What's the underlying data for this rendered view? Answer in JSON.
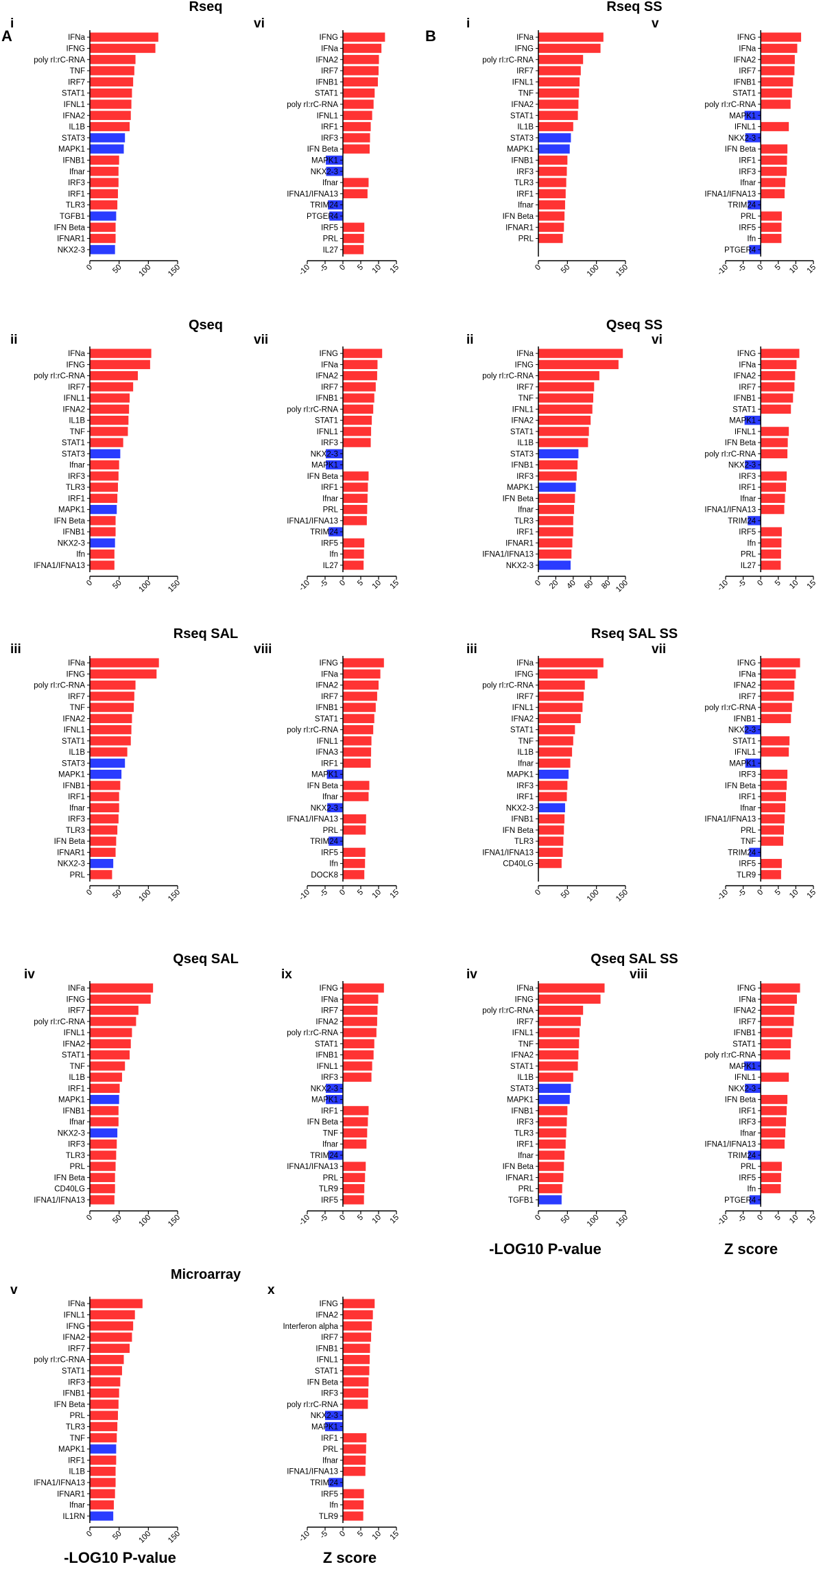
{
  "colors": {
    "pos": "#ff3333",
    "neg": "#2a3cff",
    "axis": "#000000"
  },
  "section_labels": [
    "A",
    "B"
  ],
  "section_titles": [
    "Rseq",
    "Qseq",
    "Rseq SAL",
    "Qseq SAL",
    "Microarray",
    "Rseq SS",
    "Qseq SS",
    "Rseq SAL SS",
    "Qseq SAL SS"
  ],
  "axis_titles": {
    "pvalue": "-LOG10 P-value",
    "zscore": "Z score"
  },
  "chart_data": [
    {
      "id": "A-i",
      "type": "bar",
      "orientation": "horizontal",
      "panel": "i",
      "xlim": [
        0,
        150
      ],
      "ticks": [
        0,
        50,
        100,
        150
      ],
      "categories": [
        "IFNa",
        "IFNG",
        "poly rI:rC-RNA",
        "TNF",
        "IRF7",
        "STAT1",
        "IFNL1",
        "IFNA2",
        "IL1B",
        "STAT3",
        "MAPK1",
        "IFNB1",
        "Ifnar",
        "IRF3",
        "IRF1",
        "TLR3",
        "TGFB1",
        "IFN Beta",
        "IFNAR1",
        "NKX2-3"
      ],
      "values": [
        117,
        112,
        78,
        76,
        74,
        72,
        71,
        70,
        68,
        60,
        58,
        50,
        49,
        49,
        48,
        47,
        45,
        44,
        44,
        43
      ],
      "signs": [
        1,
        1,
        1,
        1,
        1,
        1,
        1,
        1,
        1,
        -1,
        -1,
        1,
        1,
        1,
        1,
        1,
        -1,
        1,
        1,
        -1
      ]
    },
    {
      "id": "A-vi",
      "type": "bar",
      "orientation": "horizontal",
      "panel": "vi",
      "xlim": [
        -10,
        15
      ],
      "ticks": [
        -10,
        -5,
        0,
        5,
        10,
        15
      ],
      "categories": [
        "IFNG",
        "IFNa",
        "IFNA2",
        "IRF7",
        "IFNB1",
        "STAT1",
        "poly rI:rC-RNA",
        "IFNL1",
        "IRF1",
        "IRF3",
        "IFN Beta",
        "MAPK1",
        "NKX2-3",
        "Ifnar",
        "IFNA1/IFNA13",
        "TRIM24",
        "PTGER4",
        "IRF5",
        "PRL",
        "IL27"
      ],
      "values": [
        11.8,
        10.8,
        10.1,
        10.0,
        9.8,
        8.9,
        8.6,
        8.2,
        7.8,
        7.6,
        7.5,
        -4.8,
        -4.7,
        7.2,
        6.9,
        -4.2,
        -3.8,
        6.0,
        5.9,
        5.8
      ]
    },
    {
      "id": "A-ii",
      "type": "bar",
      "orientation": "horizontal",
      "panel": "ii",
      "xlim": [
        0,
        150
      ],
      "ticks": [
        0,
        50,
        100,
        150
      ],
      "categories": [
        "IFNa",
        "IFNG",
        "poly rI:rC-RNA",
        "IRF7",
        "IFNL1",
        "IFNA2",
        "IL1B",
        "TNF",
        "STAT1",
        "STAT3",
        "Ifnar",
        "IRF3",
        "TLR3",
        "IRF1",
        "MAPK1",
        "IFN Beta",
        "IFNB1",
        "NKX2-3",
        "Ifn",
        "IFNA1/IFNA13"
      ],
      "values": [
        105,
        103,
        82,
        74,
        68,
        67,
        66,
        65,
        57,
        52,
        50,
        49,
        48,
        47,
        46,
        44,
        44,
        43,
        42,
        42
      ],
      "signs": [
        1,
        1,
        1,
        1,
        1,
        1,
        1,
        1,
        1,
        -1,
        1,
        1,
        1,
        1,
        -1,
        1,
        1,
        -1,
        1,
        1
      ]
    },
    {
      "id": "A-vii",
      "type": "bar",
      "orientation": "horizontal",
      "panel": "vii",
      "xlim": [
        -10,
        15
      ],
      "ticks": [
        -10,
        -5,
        0,
        5,
        10,
        15
      ],
      "categories": [
        "IFNG",
        "IFNa",
        "IFNA2",
        "IRF7",
        "IFNB1",
        "poly rI:rC-RNA",
        "STAT1",
        "IFNL1",
        "IRF3",
        "NKX2-3",
        "MAPK1",
        "IFN Beta",
        "IRF1",
        "Ifnar",
        "PRL",
        "IFNA1/IFNA13",
        "TRIM24",
        "IRF5",
        "Ifn",
        "IL27"
      ],
      "values": [
        11.0,
        9.7,
        9.6,
        9.2,
        8.8,
        8.5,
        8.1,
        7.9,
        7.8,
        -4.8,
        -4.8,
        7.2,
        7.0,
        6.9,
        6.8,
        6.7,
        -4.0,
        6.0,
        5.9,
        5.8
      ]
    },
    {
      "id": "A-iii",
      "type": "bar",
      "orientation": "horizontal",
      "panel": "iii",
      "xlim": [
        0,
        150
      ],
      "ticks": [
        0,
        50,
        100,
        150
      ],
      "categories": [
        "IFNa",
        "IFNG",
        "poly rI:rC-RNA",
        "IRF7",
        "TNF",
        "IFNA2",
        "IFNL1",
        "STAT1",
        "IL1B",
        "STAT3",
        "MAPK1",
        "IFNB1",
        "IRF1",
        "Ifnar",
        "IRF3",
        "TLR3",
        "IFN Beta",
        "IFNAR1",
        "NKX2-3",
        "PRL"
      ],
      "values": [
        118,
        114,
        78,
        76,
        75,
        72,
        71,
        70,
        64,
        60,
        54,
        52,
        50,
        50,
        49,
        47,
        45,
        44,
        40,
        38
      ],
      "signs": [
        1,
        1,
        1,
        1,
        1,
        1,
        1,
        1,
        1,
        -1,
        -1,
        1,
        1,
        1,
        1,
        1,
        1,
        1,
        -1,
        1
      ]
    },
    {
      "id": "A-viii",
      "type": "bar",
      "orientation": "horizontal",
      "panel": "viii",
      "xlim": [
        -10,
        15
      ],
      "ticks": [
        -10,
        -5,
        0,
        5,
        10,
        15
      ],
      "categories": [
        "IFNG",
        "IFNa",
        "IFNA2",
        "IRF7",
        "IFNB1",
        "STAT1",
        "poly rI:rC-RNA",
        "IFNL1",
        "IFNA3",
        "IRF1",
        "MAPK1",
        "IFN Beta",
        "Ifnar",
        "NKX2-3",
        "IFNA1/IFNA13",
        "PRL",
        "TRIM24",
        "IRF5",
        "Ifn",
        "DOCK8"
      ],
      "values": [
        11.5,
        10.5,
        10.0,
        9.6,
        9.2,
        8.8,
        8.5,
        8.0,
        7.9,
        7.8,
        -4.5,
        7.4,
        7.2,
        -4.4,
        6.5,
        6.4,
        -4.0,
        6.3,
        6.2,
        6.0
      ]
    },
    {
      "id": "A-iv",
      "type": "bar",
      "orientation": "horizontal",
      "panel": "iv",
      "xlim": [
        0,
        150
      ],
      "ticks": [
        0,
        50,
        100,
        150
      ],
      "categories": [
        "INFa",
        "IFNG",
        "IRF7",
        "poly rI:rC-RNA",
        "IFNL1",
        "IFNA2",
        "STAT1",
        "TNF",
        "IL1B",
        "IRF1",
        "MAPK1",
        "IFNB1",
        "Ifnar",
        "NKX2-3",
        "IRF3",
        "TLR3",
        "PRL",
        "IFN Beta",
        "CD40LG",
        "IFNA1/IFNA13"
      ],
      "values": [
        108,
        104,
        83,
        79,
        72,
        70,
        68,
        60,
        55,
        51,
        50,
        49,
        49,
        47,
        46,
        45,
        44,
        43,
        43,
        42
      ],
      "signs": [
        1,
        1,
        1,
        1,
        1,
        1,
        1,
        1,
        1,
        1,
        -1,
        1,
        1,
        -1,
        1,
        1,
        1,
        1,
        1,
        1
      ]
    },
    {
      "id": "A-ix",
      "type": "bar",
      "orientation": "horizontal",
      "panel": "ix",
      "xlim": [
        -10,
        15
      ],
      "ticks": [
        -10,
        -5,
        0,
        5,
        10,
        15
      ],
      "categories": [
        "IFNG",
        "IFNa",
        "IRF7",
        "IFNA2",
        "poly rI:rC-RNA",
        "STAT1",
        "IFNB1",
        "IFNL1",
        "IRF3",
        "NKX2-3",
        "MAPK1",
        "IRF1",
        "IFN Beta",
        "TNF",
        "Ifnar",
        "TRIM24",
        "IFNA1/IFNA13",
        "PRL",
        "TLR9",
        "IRF5"
      ],
      "values": [
        11.5,
        9.9,
        9.7,
        9.6,
        9.4,
        8.8,
        8.6,
        8.2,
        8.0,
        -4.8,
        -4.8,
        7.2,
        7.0,
        6.8,
        6.6,
        -4.1,
        6.4,
        6.2,
        6.0,
        5.9
      ]
    },
    {
      "id": "A-v",
      "type": "bar",
      "orientation": "horizontal",
      "panel": "v",
      "xlim": [
        0,
        150
      ],
      "ticks": [
        0,
        50,
        100,
        150
      ],
      "categories": [
        "IFNa",
        "IFNL1",
        "IFNG",
        "IFNA2",
        "IRF7",
        "poly rI:rC-RNA",
        "STAT1",
        "IRF3",
        "IFNB1",
        "IFN Beta",
        "PRL",
        "TLR3",
        "TNF",
        "MAPK1",
        "IRF1",
        "IL1B",
        "IFNA1/IFNA13",
        "IFNAR1",
        "Ifnar",
        "IL1RN"
      ],
      "values": [
        90,
        77,
        74,
        72,
        68,
        58,
        55,
        52,
        50,
        49,
        48,
        47,
        46,
        45,
        45,
        44,
        44,
        43,
        41,
        40
      ],
      "signs": [
        1,
        1,
        1,
        1,
        1,
        1,
        1,
        1,
        1,
        1,
        1,
        1,
        1,
        -1,
        1,
        1,
        1,
        1,
        1,
        -1
      ]
    },
    {
      "id": "A-x",
      "type": "bar",
      "orientation": "horizontal",
      "panel": "x",
      "xlim": [
        -10,
        15
      ],
      "ticks": [
        -10,
        -5,
        0,
        5,
        10,
        15
      ],
      "categories": [
        "IFNG",
        "IFNA2",
        "Interferon alpha",
        "IRF7",
        "IFNB1",
        "IFNL1",
        "STAT1",
        "IFN Beta",
        "IRF3",
        "poly rI:rC-RNA",
        "NKX2-3",
        "MAPK1",
        "IRF1",
        "PRL",
        "Ifnar",
        "IFNA1/IFNA13",
        "TRIM24",
        "IRF5",
        "Ifn",
        "TLR9"
      ],
      "values": [
        8.9,
        8.4,
        8.1,
        7.9,
        7.6,
        7.5,
        7.4,
        7.2,
        7.1,
        7.0,
        -5.0,
        -5.0,
        6.6,
        6.5,
        6.4,
        6.3,
        -4.0,
        5.9,
        5.8,
        5.7
      ]
    },
    {
      "id": "B-i",
      "type": "bar",
      "orientation": "horizontal",
      "panel": "i",
      "xlim": [
        0,
        150
      ],
      "ticks": [
        0,
        50,
        100,
        150
      ],
      "categories": [
        "IFNa",
        "IFNG",
        "poly rI:rC-RNA",
        "IRF7",
        "IFNL1",
        "TNF",
        "IFNA2",
        "STAT1",
        "IL1B",
        "STAT3",
        "MAPK1",
        "IFNB1",
        "IRF3",
        "TLR3",
        "IRF1",
        "Ifnar",
        "IFN Beta",
        "IFNAR1",
        "PRL"
      ],
      "values": [
        112,
        107,
        77,
        73,
        71,
        70,
        69,
        68,
        60,
        56,
        54,
        50,
        49,
        48,
        47,
        46,
        45,
        44,
        42
      ],
      "signs": [
        1,
        1,
        1,
        1,
        1,
        1,
        1,
        1,
        1,
        -1,
        -1,
        1,
        1,
        1,
        1,
        1,
        1,
        1,
        1
      ]
    },
    {
      "id": "B-v",
      "type": "bar",
      "orientation": "horizontal",
      "panel": "v",
      "xlim": [
        -10,
        15
      ],
      "ticks": [
        -10,
        -5,
        0,
        5,
        10,
        15
      ],
      "categories": [
        "IFNG",
        "IFNa",
        "IFNA2",
        "IRF7",
        "IFNB1",
        "STAT1",
        "poly rI:rC-RNA",
        "MAPK1",
        "IFNL1",
        "NKX2-3",
        "IFN Beta",
        "IRF1",
        "IRF3",
        "Ifnar",
        "IFNA1/IFNA13",
        "TRIM24",
        "PRL",
        "IRF5",
        "Ifn",
        "PTGER4"
      ],
      "values": [
        11.5,
        10.4,
        9.7,
        9.6,
        9.2,
        8.9,
        8.5,
        -4.6,
        8.0,
        -4.4,
        7.6,
        7.5,
        7.4,
        7.0,
        6.8,
        -3.7,
        6.0,
        5.9,
        5.9,
        -3.3
      ]
    },
    {
      "id": "B-ii",
      "type": "bar",
      "orientation": "horizontal",
      "panel": "ii",
      "xlim": [
        0,
        100
      ],
      "ticks": [
        0,
        20,
        40,
        60,
        80,
        100
      ],
      "categories": [
        "IFNa",
        "IFNG",
        "poly rI:rC-RNA",
        "IRF7",
        "TNF",
        "IFNL1",
        "IFNA2",
        "STAT1",
        "IL1B",
        "STAT3",
        "IFNB1",
        "IRF3",
        "MAPK1",
        "IFN Beta",
        "Ifnar",
        "TLR3",
        "IRF1",
        "IFNAR1",
        "IFNA1/IFNA13",
        "NKX2-3"
      ],
      "values": [
        97,
        92,
        70,
        64,
        63,
        62,
        60,
        58,
        57,
        46,
        45,
        44,
        43,
        42,
        41,
        40,
        40,
        39,
        38,
        37
      ],
      "signs": [
        1,
        1,
        1,
        1,
        1,
        1,
        1,
        1,
        1,
        -1,
        1,
        1,
        -1,
        1,
        1,
        1,
        1,
        1,
        1,
        -1
      ]
    },
    {
      "id": "B-vi",
      "type": "bar",
      "orientation": "horizontal",
      "panel": "vi",
      "xlim": [
        -10,
        15
      ],
      "ticks": [
        -10,
        -5,
        0,
        5,
        10,
        15
      ],
      "categories": [
        "IFNG",
        "IFNa",
        "IFNA2",
        "IRF7",
        "IFNB1",
        "STAT1",
        "MAPK1",
        "IFNL1",
        "IFN Beta",
        "poly rI:rC-RNA",
        "NKX2-3",
        "IRF3",
        "IRF1",
        "Ifnar",
        "IFNA1/IFNA13",
        "TRIM24",
        "IRF5",
        "Ifn",
        "PRL",
        "IL27"
      ],
      "values": [
        11.0,
        10.2,
        9.8,
        9.6,
        9.2,
        8.6,
        -4.6,
        8.0,
        7.7,
        7.6,
        -4.5,
        7.4,
        7.2,
        6.9,
        6.7,
        -3.7,
        6.0,
        5.9,
        5.8,
        5.7
      ]
    },
    {
      "id": "B-iii",
      "type": "bar",
      "orientation": "horizontal",
      "panel": "iii",
      "xlim": [
        0,
        150
      ],
      "ticks": [
        0,
        50,
        100,
        150
      ],
      "categories": [
        "IFNa",
        "IFNG",
        "poly rI:rC-RNA",
        "IRF7",
        "IFNL1",
        "IFNA2",
        "STAT1",
        "TNF",
        "IL1B",
        "Ifnar",
        "MAPK1",
        "IRF3",
        "IRF1",
        "NKX2-3",
        "IFNB1",
        "IFN Beta",
        "TLR3",
        "IFNA1/IFNA13",
        "CD40LG"
      ],
      "values": [
        112,
        102,
        80,
        78,
        76,
        73,
        63,
        60,
        58,
        55,
        52,
        50,
        49,
        46,
        45,
        44,
        43,
        42,
        40
      ],
      "signs": [
        1,
        1,
        1,
        1,
        1,
        1,
        1,
        1,
        1,
        1,
        -1,
        1,
        1,
        -1,
        1,
        1,
        1,
        1,
        1
      ]
    },
    {
      "id": "B-vii",
      "type": "bar",
      "orientation": "horizontal",
      "panel": "vii",
      "xlim": [
        -10,
        15
      ],
      "ticks": [
        -10,
        -5,
        0,
        5,
        10,
        15
      ],
      "categories": [
        "IFNG",
        "IFNa",
        "IFNA2",
        "IRF7",
        "poly rI:rC-RNA",
        "IFNB1",
        "NKX2-3",
        "STAT1",
        "IFNL1",
        "MAPK1",
        "IRF3",
        "IFN Beta",
        "IRF1",
        "Ifnar",
        "IFNA1/IFNA13",
        "PRL",
        "TNF",
        "TRIM24",
        "IRF5",
        "TLR9"
      ],
      "values": [
        11.2,
        10.0,
        9.6,
        9.4,
        8.9,
        8.6,
        -4.6,
        8.2,
        8.0,
        -4.4,
        7.6,
        7.4,
        7.2,
        7.0,
        6.8,
        6.6,
        6.4,
        -3.3,
        6.0,
        5.8
      ]
    },
    {
      "id": "B-iv",
      "type": "bar",
      "orientation": "horizontal",
      "panel": "iv",
      "xlim": [
        0,
        150
      ],
      "ticks": [
        0,
        50,
        100,
        150
      ],
      "categories": [
        "IFNa",
        "IFNG",
        "poly rI:rC-RNA",
        "IRF7",
        "IFNL1",
        "TNF",
        "IFNA2",
        "STAT1",
        "IL1B",
        "STAT3",
        "MAPK1",
        "IFNB1",
        "IRF3",
        "TLR3",
        "IRF1",
        "Ifnar",
        "IFN Beta",
        "IFNAR1",
        "PRL",
        "TGFB1"
      ],
      "values": [
        114,
        107,
        77,
        73,
        71,
        70,
        69,
        68,
        60,
        56,
        54,
        50,
        49,
        48,
        47,
        45,
        44,
        43,
        41,
        40
      ],
      "signs": [
        1,
        1,
        1,
        1,
        1,
        1,
        1,
        1,
        1,
        -1,
        -1,
        1,
        1,
        1,
        1,
        1,
        1,
        1,
        1,
        -1
      ]
    },
    {
      "id": "B-viii",
      "type": "bar",
      "orientation": "horizontal",
      "panel": "viii",
      "xlim": [
        -10,
        15
      ],
      "ticks": [
        -10,
        -5,
        0,
        5,
        10,
        15
      ],
      "categories": [
        "IFNG",
        "IFNa",
        "IFNA2",
        "IRF7",
        "IFNB1",
        "STAT1",
        "poly rI:rC-RNA",
        "MAPK1",
        "IFNL1",
        "NKX2-3",
        "IFN Beta",
        "IRF1",
        "IRF3",
        "Ifnar",
        "IFNA1/IFNA13",
        "TRIM24",
        "PRL",
        "IRF5",
        "Ifn",
        "PTGER4"
      ],
      "values": [
        11.2,
        10.3,
        9.6,
        9.4,
        9.0,
        8.6,
        8.4,
        -4.7,
        8.0,
        -4.5,
        7.6,
        7.4,
        7.2,
        7.0,
        6.8,
        -3.6,
        6.0,
        5.8,
        5.7,
        -3.2
      ]
    }
  ]
}
